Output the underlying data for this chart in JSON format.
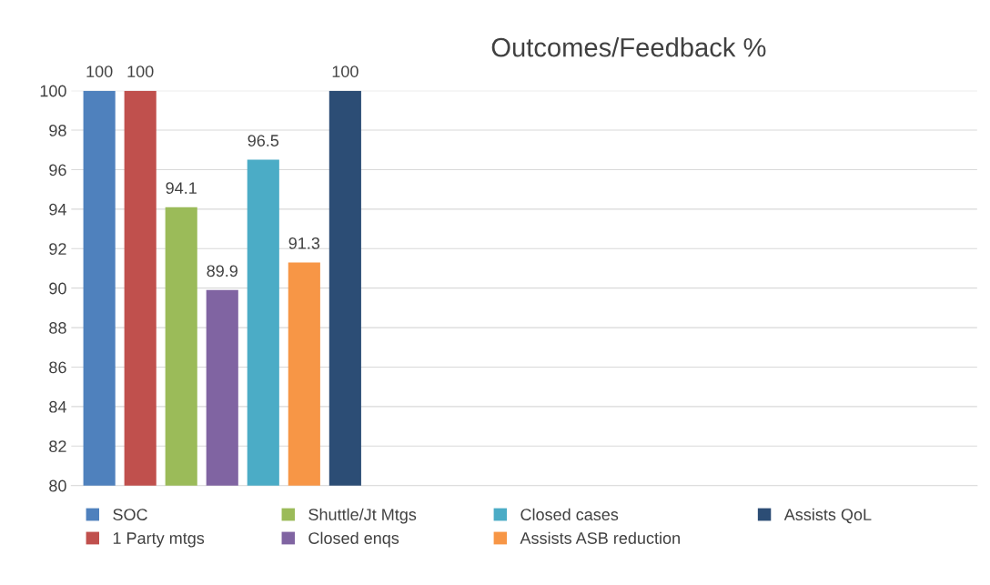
{
  "chart_data": {
    "type": "bar",
    "title": "Outcomes/Feedback %",
    "categories": [
      null,
      null,
      null
    ],
    "series": [
      {
        "name": "SOC",
        "color": "#4f81bd",
        "values": [
          100,
          null,
          null
        ]
      },
      {
        "name": "1 Party mtgs",
        "color": "#c0504d",
        "values": [
          100,
          null,
          null
        ]
      },
      {
        "name": "Shuttle/Jt Mtgs",
        "color": "#9bbb59",
        "values": [
          94.1,
          null,
          null
        ]
      },
      {
        "name": "Closed enqs",
        "color": "#8064a2",
        "values": [
          89.9,
          null,
          null
        ]
      },
      {
        "name": "Closed cases",
        "color": "#4bacc6",
        "values": [
          96.5,
          null,
          null
        ]
      },
      {
        "name": "Assists ASB reduction",
        "color": "#f79646",
        "values": [
          91.3,
          null,
          null
        ]
      },
      {
        "name": "Assists QoL",
        "color": "#2c4d75",
        "values": [
          100,
          null,
          null
        ]
      }
    ],
    "ylim": [
      80,
      100
    ],
    "yticks": [
      80,
      82,
      84,
      86,
      88,
      90,
      92,
      94,
      96,
      98,
      100
    ],
    "grid": "y",
    "legend": "bottom",
    "data_labels": true
  }
}
